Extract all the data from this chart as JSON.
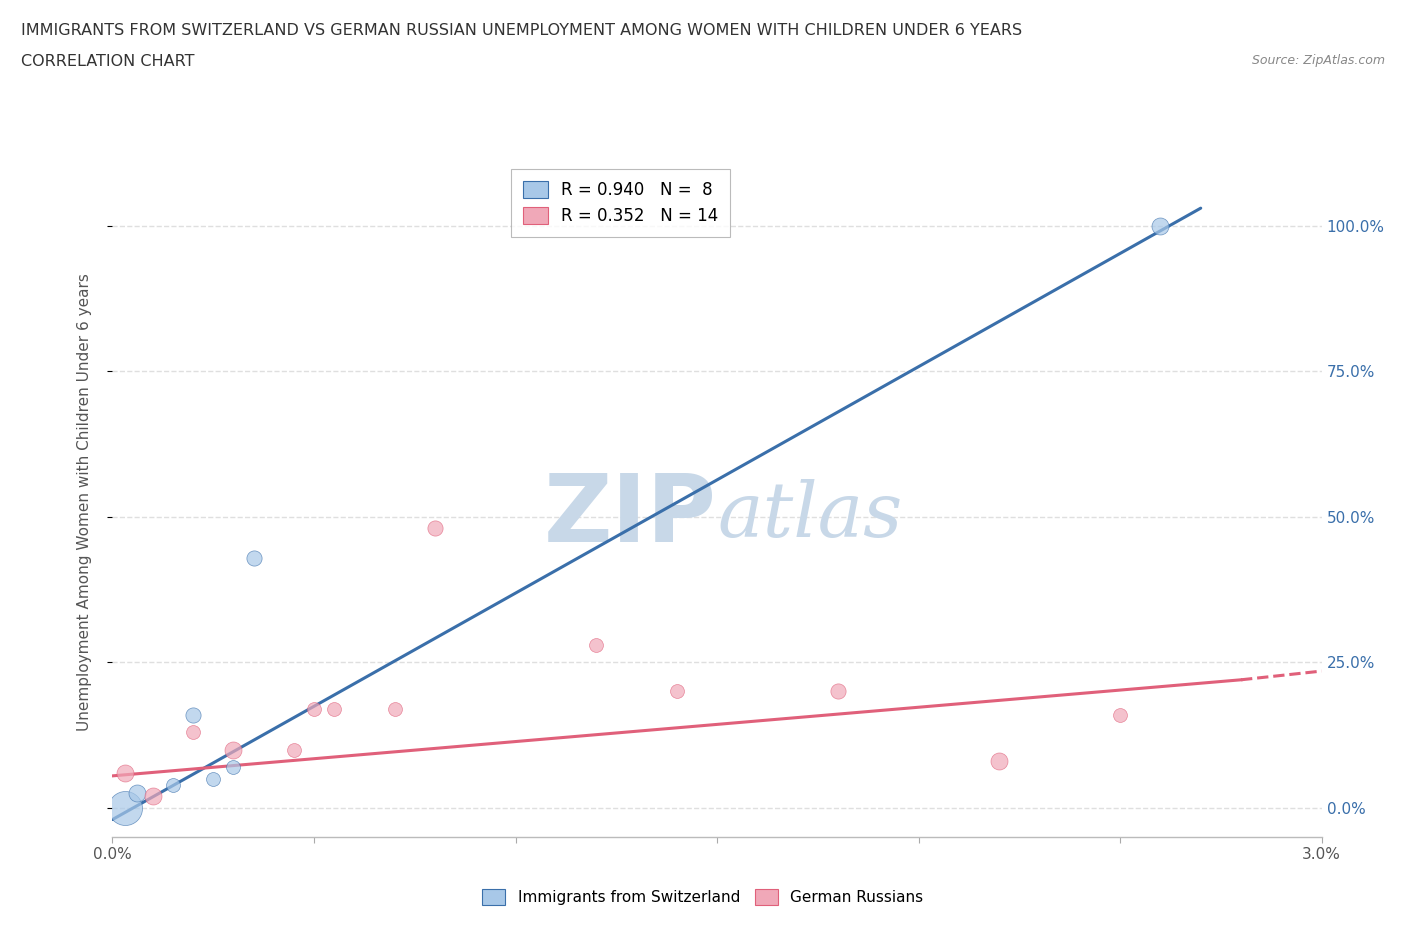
{
  "title_line1": "IMMIGRANTS FROM SWITZERLAND VS GERMAN RUSSIAN UNEMPLOYMENT AMONG WOMEN WITH CHILDREN UNDER 6 YEARS",
  "title_line2": "CORRELATION CHART",
  "source": "Source: ZipAtlas.com",
  "ylabel": "Unemployment Among Women with Children Under 6 years",
  "xlim": [
    0.0,
    0.03
  ],
  "ylim": [
    -0.05,
    1.1
  ],
  "xticks": [
    0.0,
    0.005,
    0.01,
    0.015,
    0.02,
    0.025,
    0.03
  ],
  "xtick_labels": [
    "0.0%",
    "",
    "",
    "",
    "",
    "",
    "3.0%"
  ],
  "yticks": [
    0.0,
    0.25,
    0.5,
    0.75,
    1.0
  ],
  "ytick_labels": [
    "0.0%",
    "25.0%",
    "50.0%",
    "75.0%",
    "100.0%"
  ],
  "blue_scatter_x": [
    0.0003,
    0.0006,
    0.0015,
    0.002,
    0.0025,
    0.003,
    0.0035,
    0.026
  ],
  "blue_scatter_y": [
    0.0,
    0.025,
    0.04,
    0.16,
    0.05,
    0.07,
    0.43,
    1.0
  ],
  "blue_scatter_sizes": [
    600,
    150,
    100,
    120,
    100,
    100,
    120,
    150
  ],
  "blue_line_x": [
    0.0,
    0.027
  ],
  "blue_line_y": [
    -0.02,
    1.03
  ],
  "blue_R": "0.940",
  "blue_N": " 8",
  "pink_scatter_x": [
    0.0003,
    0.001,
    0.002,
    0.003,
    0.0045,
    0.005,
    0.0055,
    0.007,
    0.008,
    0.012,
    0.014,
    0.018,
    0.022,
    0.025
  ],
  "pink_scatter_y": [
    0.06,
    0.02,
    0.13,
    0.1,
    0.1,
    0.17,
    0.17,
    0.17,
    0.48,
    0.28,
    0.2,
    0.2,
    0.08,
    0.16
  ],
  "pink_scatter_sizes": [
    150,
    150,
    100,
    150,
    100,
    100,
    100,
    100,
    120,
    100,
    100,
    120,
    150,
    100
  ],
  "pink_line_x": [
    0.0,
    0.028,
    0.03
  ],
  "pink_line_y": [
    0.055,
    0.22,
    0.235
  ],
  "pink_line_solid_end": 0.028,
  "pink_R": "0.352",
  "pink_N": "14",
  "blue_color": "#a8c8e8",
  "pink_color": "#f0a8b8",
  "blue_line_color": "#3a6faa",
  "pink_line_color": "#e0607a",
  "background_color": "#ffffff",
  "grid_color": "#d8d8d8",
  "watermark_color": "#c8d8e8"
}
